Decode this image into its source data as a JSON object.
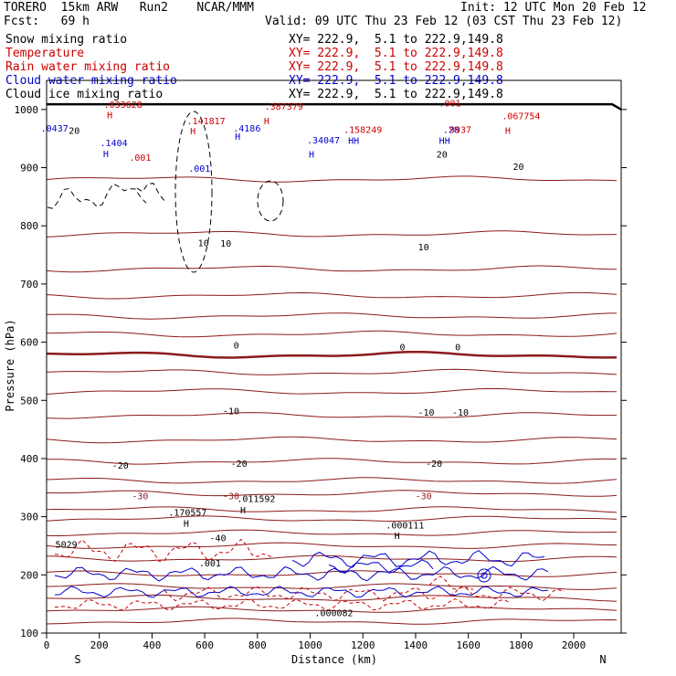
{
  "header": {
    "model": "TORERO  15km ARW   Run2    NCAR/MMM",
    "init": "Init: 12 UTC Mon 20 Feb 12",
    "fcst": "Fcst:   69 h",
    "valid": "Valid: 09 UTC Thu 23 Feb 12 (03 CST Thu 23 Feb 12)"
  },
  "fields": [
    {
      "name": "Snow mixing ratio",
      "xy": "XY= 222.9,  5.1 to 222.9,149.8",
      "color": "#000000"
    },
    {
      "name": "Temperature",
      "xy": "XY= 222.9,  5.1 to 222.9,149.8",
      "color": "#cc0000"
    },
    {
      "name": "Rain water mixing ratio",
      "xy": "XY= 222.9,  5.1 to 222.9,149.8",
      "color": "#cc0000"
    },
    {
      "name": "Cloud water mixing ratio",
      "xy": "XY= 222.9,  5.1 to 222.9,149.8",
      "color": "#0000cc"
    },
    {
      "name": "Cloud ice mixing ratio",
      "xy": "XY= 222.9,  5.1 to 222.9,149.8",
      "color": "#000000"
    }
  ],
  "chart_data": {
    "type": "contour cross-section",
    "xlabel": "Distance (km)",
    "ylabel": "Pressure (hPa)",
    "xlim": [
      0,
      2180
    ],
    "ylim": [
      1050,
      100
    ],
    "xticks": [
      0,
      200,
      400,
      600,
      800,
      1000,
      1200,
      1400,
      1600,
      1800,
      2000
    ],
    "yticks": [
      100,
      200,
      300,
      400,
      500,
      600,
      700,
      800,
      900,
      1000
    ],
    "endpoints": {
      "left": "S",
      "right": "N"
    },
    "temperature_contours": [
      {
        "p": 120,
        "label": ""
      },
      {
        "p": 140,
        "label": ""
      },
      {
        "p": 160,
        "label": ""
      },
      {
        "p": 180,
        "label": ""
      },
      {
        "p": 202,
        "label": ""
      },
      {
        "p": 228,
        "label": ""
      },
      {
        "p": 250,
        "label": "-40"
      },
      {
        "p": 272,
        "label": ""
      },
      {
        "p": 296,
        "label": ""
      },
      {
        "p": 312,
        "label": "-30"
      },
      {
        "p": 340,
        "label": ""
      },
      {
        "p": 362,
        "label": "-20"
      },
      {
        "p": 395,
        "label": ""
      },
      {
        "p": 432,
        "label": ""
      },
      {
        "p": 474,
        "label": "-10"
      },
      {
        "p": 515,
        "label": ""
      },
      {
        "p": 548,
        "label": ""
      },
      {
        "p": 578,
        "label": "0"
      },
      {
        "p": 614,
        "label": ""
      },
      {
        "p": 645,
        "label": ""
      },
      {
        "p": 680,
        "label": ""
      },
      {
        "p": 726,
        "label": "10"
      },
      {
        "p": 786,
        "label": ""
      },
      {
        "p": 880,
        "label": "20"
      }
    ],
    "contour_labels": [
      {
        "x": 75,
        "p": 247,
        "text": "5029",
        "color": "#000000"
      },
      {
        "x": 620,
        "p": 215,
        "text": ".001",
        "color": "#000000"
      },
      {
        "x": 530,
        "p": 283,
        "text": "H",
        "color": "#000000"
      },
      {
        "x": 535,
        "p": 302,
        "text": ".170557",
        "color": "#000000"
      },
      {
        "x": 745,
        "p": 306,
        "text": "H",
        "color": "#000000"
      },
      {
        "x": 795,
        "p": 325,
        "text": ".011592",
        "color": "#000000"
      },
      {
        "x": 1330,
        "p": 262,
        "text": "H",
        "color": "#000000"
      },
      {
        "x": 1360,
        "p": 280,
        "text": ".000111",
        "color": "#000000"
      },
      {
        "x": 1090,
        "p": 129,
        "text": ".000082",
        "color": "#000000"
      },
      {
        "x": 355,
        "p": 330,
        "text": "-30",
        "color": "#8b1a1a"
      },
      {
        "x": 700,
        "p": 330,
        "text": "-30",
        "color": "#8b1a1a"
      },
      {
        "x": 1430,
        "p": 330,
        "text": "-30",
        "color": "#8b1a1a"
      },
      {
        "x": 650,
        "p": 258,
        "text": "-40",
        "color": "#000000"
      },
      {
        "x": 280,
        "p": 383,
        "text": "-20",
        "color": "#000000"
      },
      {
        "x": 730,
        "p": 386,
        "text": "-20",
        "color": "#000000"
      },
      {
        "x": 1470,
        "p": 386,
        "text": "-20",
        "color": "#000000"
      },
      {
        "x": 700,
        "p": 476,
        "text": "-10",
        "color": "#000000"
      },
      {
        "x": 1440,
        "p": 474,
        "text": "-10",
        "color": "#000000"
      },
      {
        "x": 1570,
        "p": 474,
        "text": "-10",
        "color": "#000000"
      },
      {
        "x": 720,
        "p": 589,
        "text": "0",
        "color": "#000000"
      },
      {
        "x": 1350,
        "p": 586,
        "text": "0",
        "color": "#000000"
      },
      {
        "x": 1560,
        "p": 586,
        "text": "0",
        "color": "#000000"
      },
      {
        "x": 595,
        "p": 765,
        "text": "10",
        "color": "#000000"
      },
      {
        "x": 680,
        "p": 764,
        "text": "10",
        "color": "#000000"
      },
      {
        "x": 1430,
        "p": 758,
        "text": "10",
        "color": "#000000"
      },
      {
        "x": 1500,
        "p": 917,
        "text": "20",
        "color": "#000000"
      },
      {
        "x": 1790,
        "p": 896,
        "text": "20",
        "color": "#000000"
      },
      {
        "x": 105,
        "p": 958,
        "text": "20",
        "color": "#000000"
      },
      {
        "x": 355,
        "p": 912,
        "text": ".001",
        "color": "#cc0000"
      },
      {
        "x": 580,
        "p": 893,
        "text": ".001",
        "color": "#0000cc"
      },
      {
        "x": 225,
        "p": 918,
        "text": "H",
        "color": "#0000cc"
      },
      {
        "x": 255,
        "p": 937,
        "text": ".1404",
        "color": "#0000cc"
      },
      {
        "x": 30,
        "p": 962,
        "text": ".0437",
        "color": "#0000cc"
      },
      {
        "x": 240,
        "p": 985,
        "text": "H",
        "color": "#cc0000"
      },
      {
        "x": 290,
        "p": 1003,
        "text": ".033628",
        "color": "#cc0000"
      },
      {
        "x": 555,
        "p": 957,
        "text": "H",
        "color": "#cc0000"
      },
      {
        "x": 605,
        "p": 975,
        "text": ".141817",
        "color": "#cc0000"
      },
      {
        "x": 725,
        "p": 948,
        "text": "H",
        "color": "#0000cc"
      },
      {
        "x": 760,
        "p": 962,
        "text": ".4186",
        "color": "#0000cc"
      },
      {
        "x": 835,
        "p": 975,
        "text": "H",
        "color": "#cc0000"
      },
      {
        "x": 900,
        "p": 1000,
        "text": ".387379",
        "color": "#cc0000"
      },
      {
        "x": 1005,
        "p": 917,
        "text": "H",
        "color": "#0000cc"
      },
      {
        "x": 1050,
        "p": 942,
        "text": ".34047",
        "color": "#0000cc"
      },
      {
        "x": 1165,
        "p": 941,
        "text": "HH",
        "color": "#0000cc"
      },
      {
        "x": 1200,
        "p": 960,
        "text": ".158249",
        "color": "#cc0000"
      },
      {
        "x": 1510,
        "p": 941,
        "text": "HH",
        "color": "#0000cc"
      },
      {
        "x": 1535,
        "p": 960,
        "text": ".28",
        "color": "#0000cc"
      },
      {
        "x": 1570,
        "p": 960,
        "text": "9937",
        "color": "#cc0000"
      },
      {
        "x": 1750,
        "p": 958,
        "text": "H",
        "color": "#cc0000"
      },
      {
        "x": 1800,
        "p": 983,
        "text": ".067754",
        "color": "#cc0000"
      },
      {
        "x": 1530,
        "p": 1005,
        "text": ".001",
        "color": "#cc0000"
      }
    ]
  },
  "colors": {
    "temperature": "#8b1a1a",
    "rain": "#cc0000",
    "cloud_water": "#0000cc",
    "snow_ice": "#000000"
  }
}
